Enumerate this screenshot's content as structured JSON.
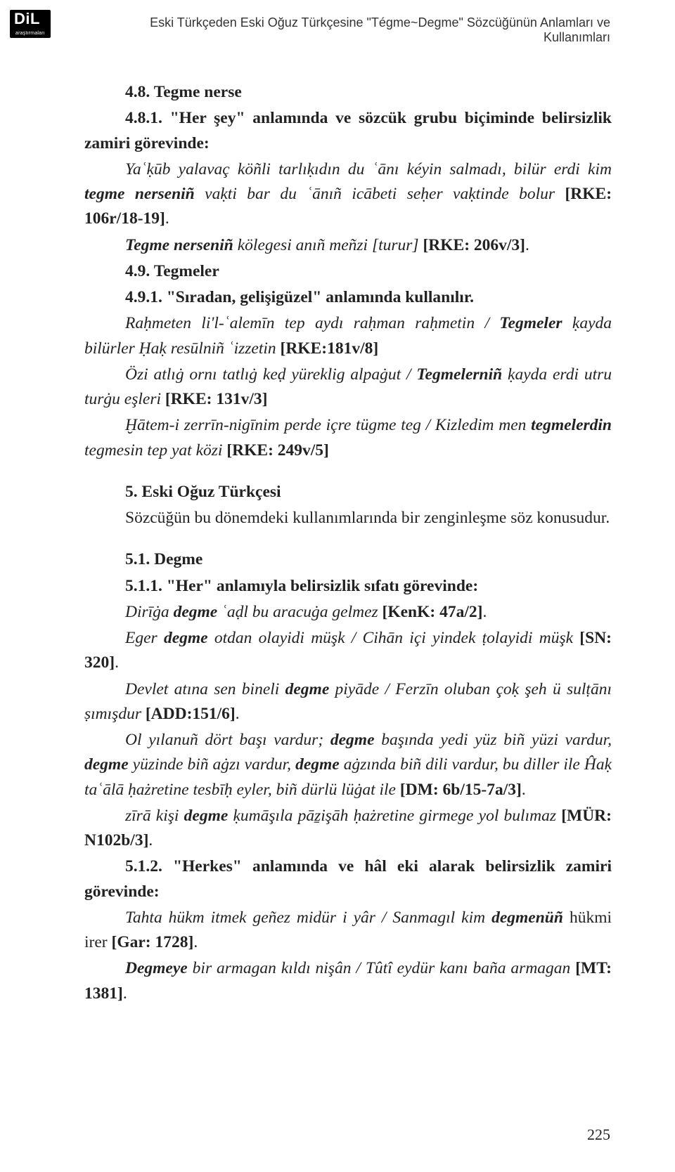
{
  "logo": {
    "top": "DiL",
    "bottom": "araştırmaları"
  },
  "running_head": "Eski Türkçeden Eski Oğuz Türkçesine \"Tégme~Degme\" Sözcüğünün Anlamları ve Kullanımları",
  "page_number": "225",
  "typography": {
    "body_font": "Times New Roman",
    "body_size_pt": 12,
    "running_head_font": "Arial",
    "running_head_size_pt": 9,
    "line_height": 1.5,
    "text_color": "#222222",
    "background_color": "#ffffff",
    "logo_bg": "#000000",
    "logo_fg": "#ffffff"
  },
  "paragraphs": [
    {
      "id": "p1",
      "indent": true,
      "runs": [
        {
          "s": "bold",
          "t": "4.8. Tegme nerse"
        }
      ]
    },
    {
      "id": "p2",
      "indent": true,
      "runs": [
        {
          "s": "bold",
          "t": "4.8.1. \"Her şey\" anlamında ve sözcük grubu biçiminde belirsizlik zamiri görevinde:"
        }
      ]
    },
    {
      "id": "p3",
      "indent": true,
      "runs": [
        {
          "s": "italic",
          "t": "Yaʿḳūb yalavaç köñli tarlıḳıdın du ʿānı kéyin salmadı, bilür erdi kim "
        },
        {
          "s": "bolditalic",
          "t": "tegme nerseniñ"
        },
        {
          "s": "italic",
          "t": " vaḳti bar du ʿānıñ icābeti seḥer vaḳtinde bolur "
        },
        {
          "s": "bold",
          "t": "[RKE: 106r/18-19]"
        },
        {
          "s": "",
          "t": "."
        }
      ]
    },
    {
      "id": "p4",
      "indent": true,
      "runs": [
        {
          "s": "bolditalic",
          "t": "Tegme nerseniñ"
        },
        {
          "s": "italic",
          "t": " kölegesi anıñ meñzi [turur] "
        },
        {
          "s": "bold",
          "t": "[RKE: 206v/3]"
        },
        {
          "s": "",
          "t": "."
        }
      ]
    },
    {
      "id": "p5",
      "indent": true,
      "runs": [
        {
          "s": "bold",
          "t": "4.9. Tegmeler"
        }
      ]
    },
    {
      "id": "p6",
      "indent": true,
      "runs": [
        {
          "s": "bold",
          "t": "4.9.1. \"Sıradan, gelişigüzel\" anlamında kullanılır."
        }
      ]
    },
    {
      "id": "p7",
      "indent": true,
      "runs": [
        {
          "s": "italic",
          "t": "Raḥmeten li'l-ʿalemīn tep aydı raḥman raḥmetin / "
        },
        {
          "s": "bolditalic",
          "t": "Tegmeler"
        },
        {
          "s": "italic",
          "t": " ḳayda bilürler Ḥaḳ resūlniñ ʿizzetin "
        },
        {
          "s": "bold",
          "t": "[RKE:181v/8]"
        }
      ]
    },
    {
      "id": "p8",
      "indent": true,
      "runs": [
        {
          "s": "italic",
          "t": "Özi atlıġ ornı tatlıġ keḍ yüreklig alpaġut / "
        },
        {
          "s": "bolditalic",
          "t": "Tegmelerniñ"
        },
        {
          "s": "italic",
          "t": " ḳayda erdi utru turġu eşleri "
        },
        {
          "s": "bold",
          "t": "[RKE: 131v/3]"
        }
      ]
    },
    {
      "id": "p9",
      "indent": true,
      "runs": [
        {
          "s": "italic",
          "t": "Ḫātem-i zerrīn-nigīnim perde içre tügme teg / Kizledim men "
        },
        {
          "s": "bolditalic",
          "t": "tegmelerdin"
        },
        {
          "s": "italic",
          "t": " tegmesin tep yat közi "
        },
        {
          "s": "bold",
          "t": "[RKE: 249v/5]"
        }
      ]
    },
    {
      "id": "p10",
      "indent": true,
      "gap": true,
      "runs": [
        {
          "s": "bold",
          "t": "5. Eski Oğuz Türkçesi"
        }
      ]
    },
    {
      "id": "p11",
      "indent": true,
      "runs": [
        {
          "s": "",
          "t": "Sözcüğün bu dönemdeki kullanımlarında bir zenginleşme söz konusudur."
        }
      ]
    },
    {
      "id": "p12",
      "indent": true,
      "gap": true,
      "runs": [
        {
          "s": "bold",
          "t": "5.1. Degme"
        }
      ]
    },
    {
      "id": "p13",
      "indent": true,
      "runs": [
        {
          "s": "bold",
          "t": "5.1.1. \"Her\" anlamıyla belirsizlik sıfatı görevinde:"
        }
      ]
    },
    {
      "id": "p14",
      "indent": true,
      "runs": [
        {
          "s": "italic",
          "t": "Dirīġa "
        },
        {
          "s": "bolditalic",
          "t": "degme"
        },
        {
          "s": "italic",
          "t": " ʿaḍl bu aracuġa gelmez "
        },
        {
          "s": "bold",
          "t": "[KenK: 47a/2]"
        },
        {
          "s": "",
          "t": "."
        }
      ]
    },
    {
      "id": "p15",
      "indent": true,
      "runs": [
        {
          "s": "italic",
          "t": "Eger "
        },
        {
          "s": "bolditalic",
          "t": "degme"
        },
        {
          "s": "italic",
          "t": " otdan olayidi müşk / Cihān içi yindek ṭolayidi müşk "
        },
        {
          "s": "bold",
          "t": "[SN: 320]"
        },
        {
          "s": "",
          "t": "."
        }
      ]
    },
    {
      "id": "p16",
      "indent": true,
      "runs": [
        {
          "s": "italic",
          "t": "Devlet atına sen bineli "
        },
        {
          "s": "bolditalic",
          "t": "degme"
        },
        {
          "s": "italic",
          "t": " piyāde / Ferzīn oluban çoḳ şeh ü sulṭānı ṣımışdur "
        },
        {
          "s": "bold",
          "t": "[ADD:151/6]"
        },
        {
          "s": "",
          "t": "."
        }
      ]
    },
    {
      "id": "p17",
      "indent": true,
      "runs": [
        {
          "s": "italic",
          "t": "Ol yılanuñ dört başı vardur; "
        },
        {
          "s": "bolditalic",
          "t": "degme"
        },
        {
          "s": "italic",
          "t": " başında yedi yüz biñ yüzi vardur, "
        },
        {
          "s": "bolditalic",
          "t": "degme"
        },
        {
          "s": "italic",
          "t": " yüzinde biñ aġzı vardur, "
        },
        {
          "s": "bolditalic",
          "t": "degme"
        },
        {
          "s": "italic",
          "t": " aġzında biñ dili vardur, bu diller ile Ĥaḳ taʿālā ḥażretine tesbīḥ eyler, biñ dürlü lüġat ile "
        },
        {
          "s": "bold",
          "t": "[DM: 6b/15-7a/3]"
        },
        {
          "s": "",
          "t": "."
        }
      ]
    },
    {
      "id": "p18",
      "indent": true,
      "runs": [
        {
          "s": "italic",
          "t": "zīrā kişi "
        },
        {
          "s": "bolditalic",
          "t": "degme"
        },
        {
          "s": "italic",
          "t": " ḳumāşıla pāẕişāh ḥażretine girmege yol bulımaz "
        },
        {
          "s": "bold",
          "t": "[MÜR: N102b/3]"
        },
        {
          "s": "",
          "t": "."
        }
      ]
    },
    {
      "id": "p19",
      "indent": true,
      "runs": [
        {
          "s": "bold",
          "t": "5.1.2. \"Herkes\" anlamında ve hâl eki alarak belirsizlik zamiri görevinde:"
        }
      ]
    },
    {
      "id": "p20",
      "indent": true,
      "runs": [
        {
          "s": "italic",
          "t": "Tahta hükm itmek geñez midür i yâr / Sanmagıl kim "
        },
        {
          "s": "bolditalic",
          "t": "degmenüñ"
        },
        {
          "s": "",
          "t": " hükmi irer "
        },
        {
          "s": "bold",
          "t": "[Gar: 1728]"
        },
        {
          "s": "",
          "t": "."
        }
      ]
    },
    {
      "id": "p21",
      "indent": true,
      "runs": [
        {
          "s": "bolditalic",
          "t": "Degmeye"
        },
        {
          "s": "italic",
          "t": " bir armagan kıldı nişân / Tûtî eydür kanı baña armagan "
        },
        {
          "s": "bold",
          "t": "[MT: 1381]"
        },
        {
          "s": "",
          "t": "."
        }
      ]
    }
  ]
}
